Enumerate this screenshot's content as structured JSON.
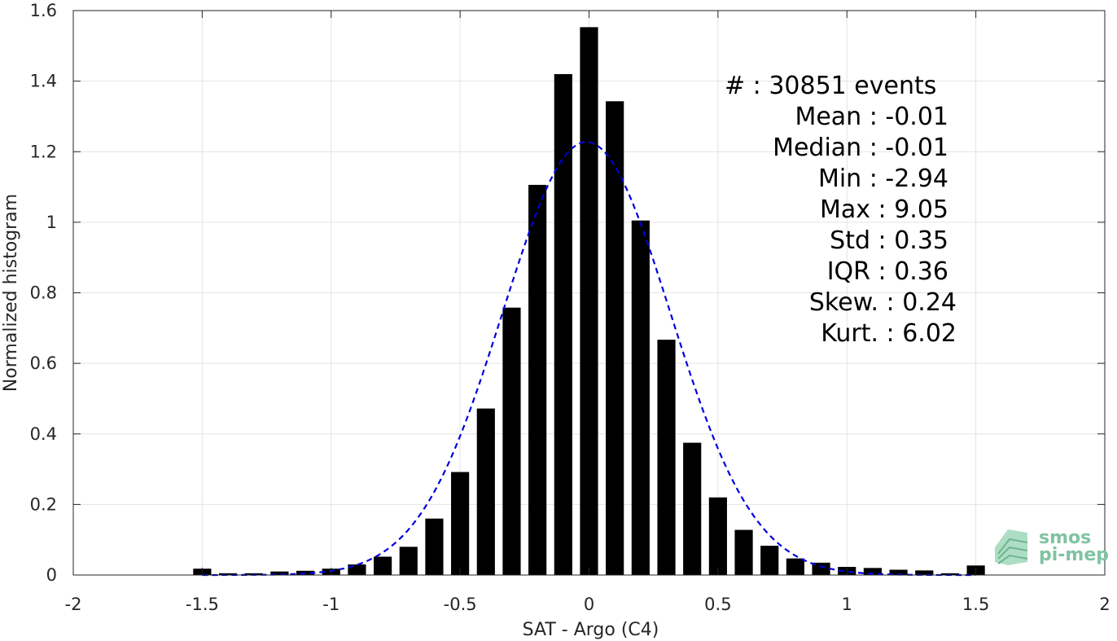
{
  "chart_data": {
    "type": "bar",
    "xlabel": "SAT - Argo (C4)",
    "ylabel": "Normalized histogram",
    "xlim": [
      -2,
      2
    ],
    "ylim": [
      0,
      1.6
    ],
    "xticks": [
      -2,
      -1.5,
      -1,
      -0.5,
      0,
      0.5,
      1,
      1.5,
      2
    ],
    "xtick_labels": [
      "-2",
      "-1.5",
      "-1",
      "-0.5",
      "0",
      "0.5",
      "1",
      "1.5",
      "2"
    ],
    "yticks": [
      0,
      0.2,
      0.4,
      0.6,
      0.8,
      1,
      1.2,
      1.4,
      1.6
    ],
    "ytick_labels": [
      "0",
      "0.2",
      "0.4",
      "0.6",
      "0.8",
      "1",
      "1.2",
      "1.4",
      "1.6"
    ],
    "grid": true,
    "bar_color": "#000000",
    "bin_width": 0.1,
    "bin_centers": [
      -1.5,
      -1.4,
      -1.3,
      -1.2,
      -1.1,
      -1.0,
      -0.9,
      -0.8,
      -0.7,
      -0.6,
      -0.5,
      -0.4,
      -0.3,
      -0.2,
      -0.1,
      0.0,
      0.1,
      0.2,
      0.3,
      0.4,
      0.5,
      0.6,
      0.7,
      0.8,
      0.9,
      1.0,
      1.1,
      1.2,
      1.3,
      1.4,
      1.5
    ],
    "values": [
      0.018,
      0.005,
      0.005,
      0.01,
      0.012,
      0.018,
      0.03,
      0.052,
      0.08,
      0.16,
      0.292,
      0.472,
      0.758,
      1.106,
      1.42,
      1.553,
      1.343,
      1.005,
      0.667,
      0.375,
      0.22,
      0.128,
      0.083,
      0.047,
      0.035,
      0.023,
      0.02,
      0.015,
      0.013,
      0.005,
      0.027
    ],
    "fit_curve": {
      "type": "gaussian",
      "mean": -0.01,
      "std": 0.325,
      "style": "dashed",
      "color": "#0000dd"
    },
    "stats": [
      "#  : 30851 events",
      "Mean : -0.01",
      "Median : -0.01",
      "Min : -2.94",
      "Max : 9.05",
      "Std : 0.35",
      "IQR : 0.36",
      "Skew. : 0.24",
      "Kurt. : 6.02"
    ],
    "logo": [
      "smos",
      "pi-mep"
    ]
  }
}
